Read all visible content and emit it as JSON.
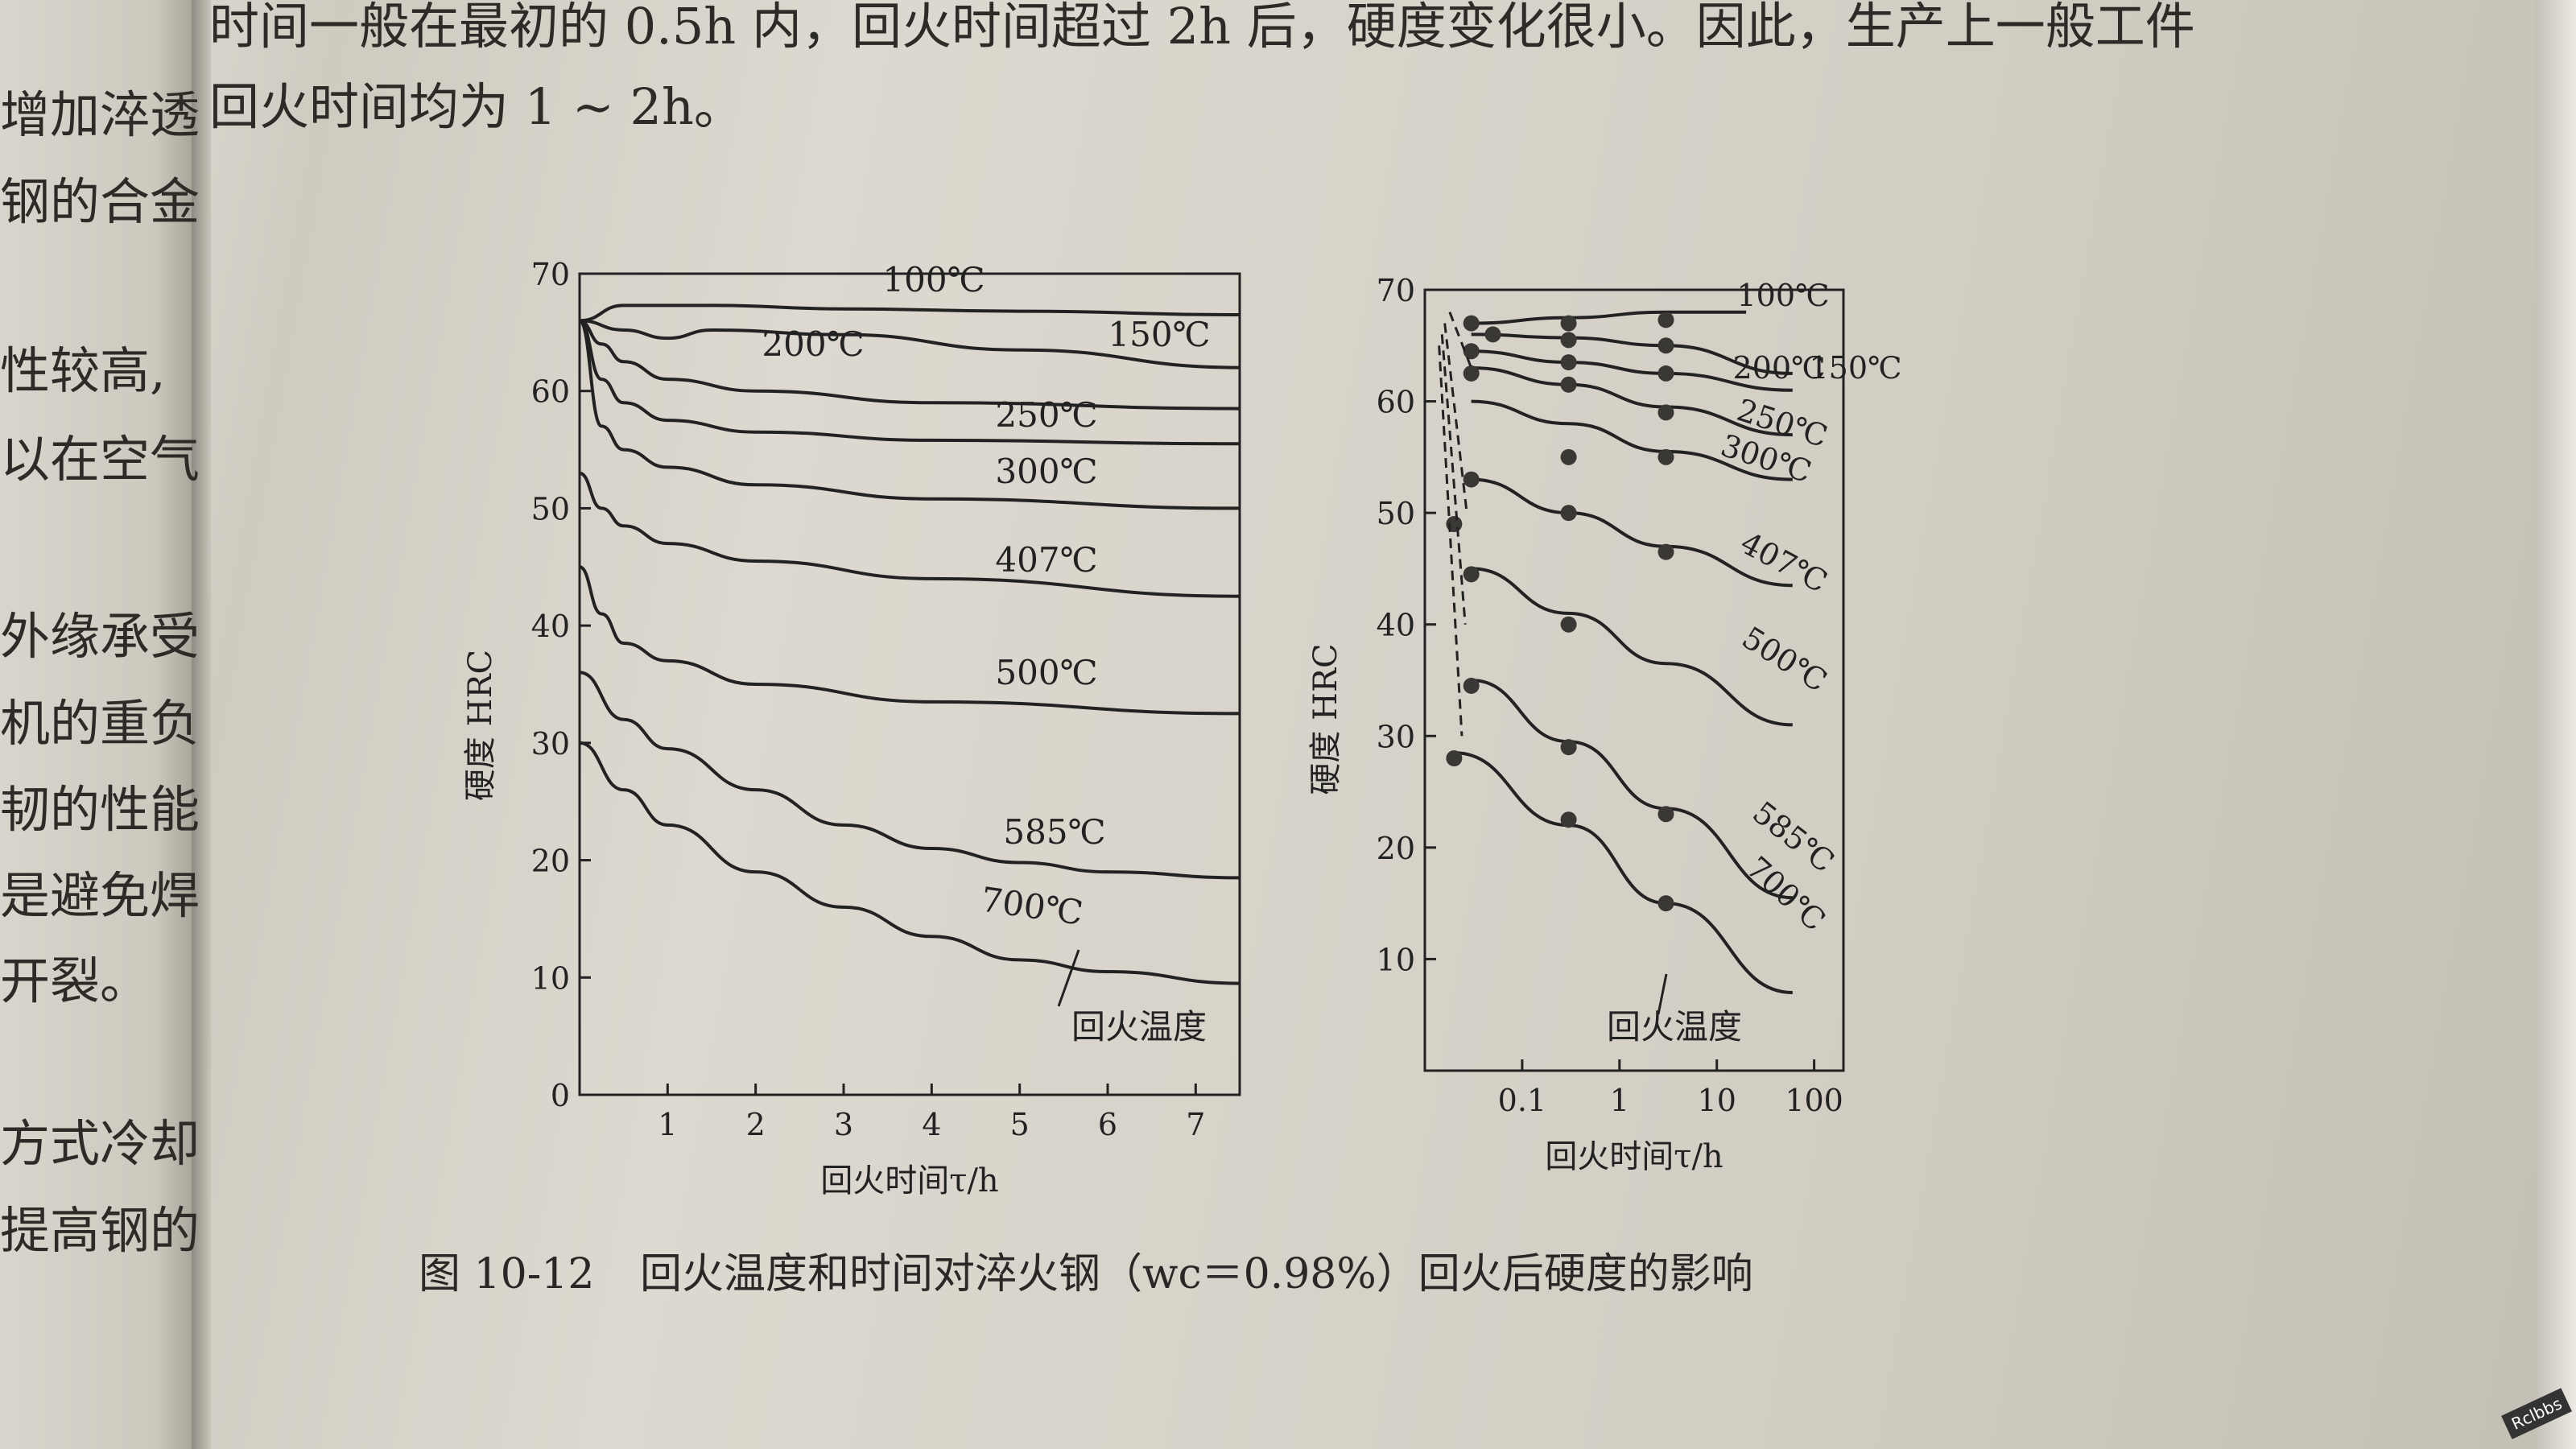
{
  "top_text": [
    "时间一般在最初的 0.5h 内，回火时间超过 2h 后，硬度变化很小。因此，生产上一般工件",
    "回火时间均为 1 ~ 2h。"
  ],
  "left_margin_text": [
    "增加淬透",
    "钢的合金",
    "性较高,",
    "以在空气",
    "外缘承受",
    "机的重负",
    "韧的性能",
    "是避免焊",
    "开裂。",
    "方式冷却",
    "提高钢的"
  ],
  "caption": {
    "label": "图 10-12",
    "text": "回火温度和时间对淬火钢（wc＝0.98%）回火后硬度的影响"
  },
  "watermark": "Rclbbs",
  "colors": {
    "ink": "#222222",
    "paper": "#d6d3ca"
  },
  "chart_data": [
    {
      "type": "line",
      "xlabel": "回火时间τ/h",
      "ylabel": "硬度  HRC",
      "xlim": [
        0,
        7.5
      ],
      "ylim": [
        0,
        70
      ],
      "xticks": [
        1,
        2,
        3,
        4,
        5,
        6,
        7
      ],
      "yticks": [
        0,
        10,
        20,
        30,
        40,
        50,
        60,
        70
      ],
      "annotation": "回火温度",
      "series": [
        {
          "name": "100℃",
          "x": [
            0,
            0.5,
            1.5,
            3,
            5,
            7.5
          ],
          "y": [
            66,
            67.3,
            67.3,
            67,
            66.8,
            66.5
          ]
        },
        {
          "name": "150℃",
          "x": [
            0,
            0.5,
            1,
            1.5,
            3,
            5,
            7.5
          ],
          "y": [
            66,
            65.2,
            64.5,
            65.2,
            64.8,
            63.5,
            62
          ]
        },
        {
          "name": "200℃",
          "x": [
            0,
            0.25,
            0.5,
            1,
            2,
            4,
            7.5
          ],
          "y": [
            66,
            64,
            62.5,
            61,
            60,
            59,
            58.5
          ]
        },
        {
          "name": "250℃",
          "x": [
            0,
            0.25,
            0.5,
            1,
            2,
            4,
            7.5
          ],
          "y": [
            66,
            61,
            59,
            57.5,
            56.5,
            55.8,
            55.5
          ]
        },
        {
          "name": "300℃",
          "x": [
            0,
            0.25,
            0.5,
            1,
            2,
            4,
            7.5
          ],
          "y": [
            66,
            57,
            55,
            53.5,
            52,
            50.8,
            50
          ]
        },
        {
          "name": "407℃",
          "x": [
            0,
            0.25,
            0.5,
            1,
            2,
            4,
            7.5
          ],
          "y": [
            53,
            50,
            48.5,
            47,
            45.5,
            44,
            42.5
          ]
        },
        {
          "name": "500℃",
          "x": [
            0,
            0.25,
            0.5,
            1,
            2,
            4,
            7.5
          ],
          "y": [
            45,
            41,
            38.5,
            37,
            35,
            33.5,
            32.5
          ]
        },
        {
          "name": "585℃",
          "x": [
            0,
            0.5,
            1,
            2,
            3,
            4,
            5,
            6,
            7.5
          ],
          "y": [
            36,
            32,
            29.5,
            26,
            23,
            21,
            19.8,
            19,
            18.5
          ]
        },
        {
          "name": "700℃",
          "x": [
            0,
            0.5,
            1,
            2,
            3,
            4,
            5,
            6,
            7.5
          ],
          "y": [
            30,
            26,
            23,
            19,
            16,
            13.5,
            11.5,
            10.5,
            9.5
          ]
        }
      ]
    },
    {
      "type": "line",
      "xscale": "log",
      "xlabel": "回火时间τ/h",
      "ylabel": "硬度  HRC",
      "xlim": [
        0.01,
        200
      ],
      "ylim": [
        0,
        70
      ],
      "xticks": [
        0.1,
        1,
        10,
        100
      ],
      "xtick_labels": [
        "0.1",
        "1",
        "10",
        "100"
      ],
      "yticks": [
        10,
        20,
        30,
        40,
        50,
        60,
        70
      ],
      "annotation": "回火温度",
      "series": [
        {
          "name": "100℃",
          "x": [
            0.03,
            0.3,
            3,
            20
          ],
          "y": [
            67,
            67.5,
            68,
            68
          ],
          "points": [
            [
              0.03,
              67
            ],
            [
              0.3,
              67
            ],
            [
              3,
              67.3
            ]
          ]
        },
        {
          "name": "150℃",
          "x": [
            0.03,
            0.3,
            3,
            60
          ],
          "y": [
            66,
            65.7,
            65,
            62.5
          ],
          "points": [
            [
              0.05,
              66
            ],
            [
              0.3,
              65.5
            ],
            [
              3,
              65
            ]
          ]
        },
        {
          "name": "200℃",
          "x": [
            0.03,
            0.3,
            3,
            60
          ],
          "y": [
            64.5,
            63.5,
            62.5,
            61
          ],
          "points": [
            [
              0.03,
              64.5
            ],
            [
              0.3,
              63.5
            ],
            [
              3,
              62.5
            ]
          ]
        },
        {
          "name": "250℃",
          "x": [
            0.03,
            0.3,
            3,
            60
          ],
          "y": [
            63,
            61.5,
            59.5,
            57
          ],
          "points": [
            [
              0.03,
              62.5
            ],
            [
              0.3,
              61.5
            ],
            [
              3,
              59
            ]
          ]
        },
        {
          "name": "300℃",
          "x": [
            0.03,
            0.3,
            3,
            60
          ],
          "y": [
            60,
            58,
            55.5,
            53
          ],
          "points": [
            [
              0.3,
              55
            ],
            [
              3,
              55
            ]
          ]
        },
        {
          "name": "407℃",
          "x": [
            0.03,
            0.3,
            3,
            60
          ],
          "y": [
            53,
            50,
            47,
            43.5
          ],
          "points": [
            [
              0.03,
              53
            ],
            [
              0.3,
              50
            ],
            [
              3,
              46.5
            ],
            [
              0.02,
              49
            ]
          ]
        },
        {
          "name": "500℃",
          "x": [
            0.03,
            0.3,
            3,
            60
          ],
          "y": [
            45,
            41,
            36.5,
            31
          ],
          "points": [
            [
              0.03,
              44.5
            ],
            [
              0.3,
              40
            ]
          ]
        },
        {
          "name": "585℃",
          "x": [
            0.03,
            0.3,
            3,
            60
          ],
          "y": [
            35,
            29.5,
            23.5,
            15.5
          ],
          "points": [
            [
              0.03,
              34.5
            ],
            [
              0.3,
              29
            ],
            [
              3,
              23
            ]
          ]
        },
        {
          "name": "700℃",
          "x": [
            0.02,
            0.3,
            3,
            60
          ],
          "y": [
            28.5,
            22,
            15,
            7
          ],
          "points": [
            [
              0.02,
              28
            ],
            [
              0.3,
              22.5
            ],
            [
              3,
              15
            ]
          ]
        }
      ]
    }
  ]
}
